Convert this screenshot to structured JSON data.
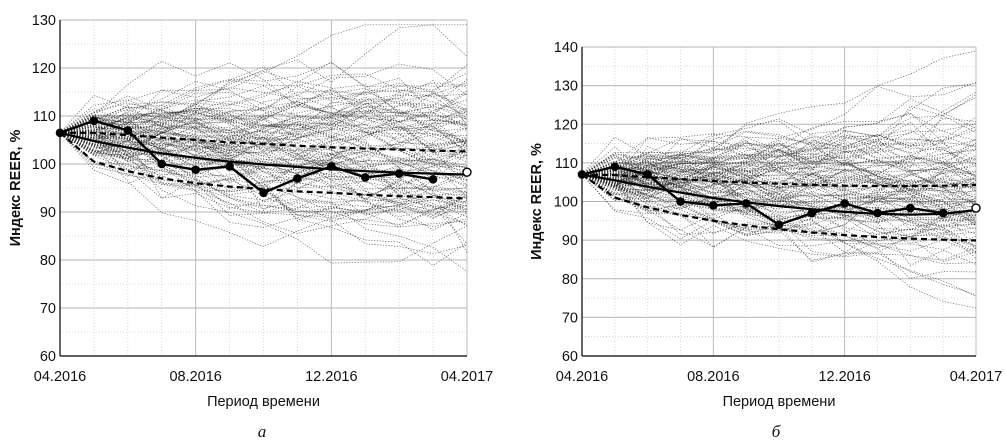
{
  "figure": {
    "captions": [
      "а",
      "б"
    ]
  },
  "chart_data": [
    {
      "type": "line",
      "panel": "а",
      "title": "",
      "xlabel": "Период времени",
      "ylabel": "Индекс REER, %",
      "x_tick_labels": [
        "04.2016",
        "08.2016",
        "12.2016",
        "04.2017"
      ],
      "y_ticks": [
        60,
        70,
        80,
        90,
        100,
        110,
        120,
        130
      ],
      "ylim": [
        60,
        130
      ],
      "x_months": [
        "04.2016",
        "05.2016",
        "06.2016",
        "07.2016",
        "08.2016",
        "09.2016",
        "10.2016",
        "11.2016",
        "12.2016",
        "01.2017",
        "02.2017",
        "03.2017",
        "04.2017"
      ],
      "grid": true,
      "simulated_paths": {
        "count": 120,
        "style": "dotted",
        "start_value": 106.5,
        "spread_at_end": [
          75,
          128
        ]
      },
      "series": [
        {
          "role": "actual",
          "style": "solid-with-markers",
          "x": [
            "04.2016",
            "05.2016",
            "06.2016",
            "07.2016",
            "08.2016",
            "09.2016",
            "10.2016",
            "11.2016",
            "12.2016",
            "01.2017",
            "02.2017",
            "03.2017"
          ],
          "values": [
            106.5,
            109,
            107,
            100,
            98.8,
            99.5,
            94,
            97,
            99.5,
            97.2,
            98,
            96.8
          ]
        },
        {
          "role": "mean",
          "style": "solid",
          "x": [
            "04.2016",
            "05.2016",
            "06.2016",
            "07.2016",
            "08.2016",
            "09.2016",
            "10.2016",
            "11.2016",
            "12.2016",
            "01.2017",
            "02.2017",
            "03.2017",
            "04.2017"
          ],
          "values": [
            106.5,
            104.8,
            103.4,
            102.2,
            101.3,
            100.5,
            99.9,
            99.4,
            98.9,
            98.5,
            98.2,
            98.0,
            97.8
          ],
          "end_marker_value": 98.3
        },
        {
          "role": "upper-band",
          "style": "dashed",
          "x": [
            "04.2016",
            "05.2016",
            "06.2016",
            "07.2016",
            "08.2016",
            "09.2016",
            "10.2016",
            "11.2016",
            "12.2016",
            "01.2017",
            "02.2017",
            "03.2017",
            "04.2017"
          ],
          "values": [
            106.5,
            106.5,
            106,
            105.5,
            105,
            104.5,
            104.2,
            103.8,
            103.5,
            103.2,
            103,
            102.8,
            102.6
          ]
        },
        {
          "role": "lower-band",
          "style": "dashed",
          "x": [
            "04.2016",
            "05.2016",
            "06.2016",
            "07.2016",
            "08.2016",
            "09.2016",
            "10.2016",
            "11.2016",
            "12.2016",
            "01.2017",
            "02.2017",
            "03.2017",
            "04.2017"
          ],
          "values": [
            106.5,
            100.5,
            98.5,
            97,
            96,
            95.3,
            94.8,
            94.3,
            94,
            93.6,
            93.3,
            93.1,
            92.8
          ]
        }
      ]
    },
    {
      "type": "line",
      "panel": "б",
      "title": "",
      "xlabel": "Период времени",
      "ylabel": "Индекс REER, %",
      "x_tick_labels": [
        "04.2016",
        "08.2016",
        "12.2016",
        "04.2017"
      ],
      "y_ticks": [
        60,
        70,
        80,
        90,
        100,
        110,
        120,
        130,
        140
      ],
      "ylim": [
        60,
        140
      ],
      "x_months": [
        "04.2016",
        "05.2016",
        "06.2016",
        "07.2016",
        "08.2016",
        "09.2016",
        "10.2016",
        "11.2016",
        "12.2016",
        "01.2017",
        "02.2017",
        "03.2017",
        "04.2017"
      ],
      "grid": true,
      "simulated_paths": {
        "count": 120,
        "style": "dotted",
        "start_value": 107,
        "spread_at_end": [
          68,
          132
        ]
      },
      "series": [
        {
          "role": "actual",
          "style": "solid-with-markers",
          "x": [
            "04.2016",
            "05.2016",
            "06.2016",
            "07.2016",
            "08.2016",
            "09.2016",
            "10.2016",
            "11.2016",
            "12.2016",
            "01.2017",
            "02.2017",
            "03.2017"
          ],
          "values": [
            107,
            109,
            107,
            100,
            99,
            99.5,
            94,
            97,
            99.5,
            97,
            98.3,
            97
          ]
        },
        {
          "role": "mean",
          "style": "solid",
          "x": [
            "04.2016",
            "05.2016",
            "06.2016",
            "07.2016",
            "08.2016",
            "09.2016",
            "10.2016",
            "11.2016",
            "12.2016",
            "01.2017",
            "02.2017",
            "03.2017",
            "04.2017"
          ],
          "values": [
            107,
            105.5,
            103.8,
            102.3,
            100.9,
            99.8,
            98.8,
            98,
            97.3,
            96.8,
            96.6,
            96.8,
            97.8
          ],
          "end_marker_value": 98.3
        },
        {
          "role": "upper-band",
          "style": "dashed",
          "x": [
            "04.2016",
            "05.2016",
            "06.2016",
            "07.2016",
            "08.2016",
            "09.2016",
            "10.2016",
            "11.2016",
            "12.2016",
            "01.2017",
            "02.2017",
            "03.2017",
            "04.2017"
          ],
          "values": [
            107,
            106.8,
            106.3,
            105.8,
            105.3,
            104.9,
            104.6,
            104.3,
            104.1,
            104,
            104,
            104.1,
            104.3
          ]
        },
        {
          "role": "lower-band",
          "style": "dashed",
          "x": [
            "04.2016",
            "05.2016",
            "06.2016",
            "07.2016",
            "08.2016",
            "09.2016",
            "10.2016",
            "11.2016",
            "12.2016",
            "01.2017",
            "02.2017",
            "03.2017",
            "04.2017"
          ],
          "values": [
            107,
            101,
            98.5,
            96.5,
            95,
            93.8,
            92.8,
            92,
            91.3,
            90.8,
            90.4,
            90.1,
            89.9
          ]
        }
      ]
    }
  ]
}
